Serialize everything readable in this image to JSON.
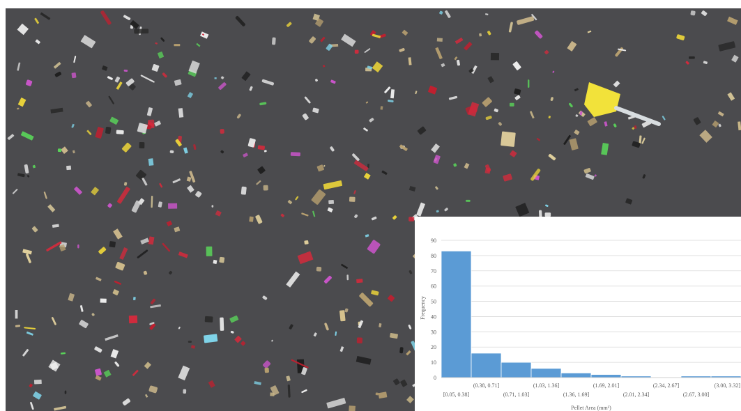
{
  "photo": {
    "description_icon": "plastic-pellets-photo",
    "background_color": "#4a4a4d"
  },
  "chart_data": {
    "type": "bar",
    "title": "",
    "xlabel": "Pellet Area (mm²)",
    "ylabel": "Frequency",
    "ylim": [
      0,
      90
    ],
    "yticks": [
      0,
      10,
      20,
      30,
      40,
      50,
      60,
      70,
      80,
      90
    ],
    "grid": true,
    "legend": "none",
    "bar_color": "#5b9bd5",
    "categories": [
      "[0.05, 0.38]",
      "(0.38, 0.71]",
      "(0.71, 1.03]",
      "(1.03, 1.36]",
      "(1.36, 1.69]",
      "(1.69, 2.01]",
      "(2.01, 2.34]",
      "(2.34, 2.67]",
      "(2.67, 3.00]",
      "(3.00, 3.32]"
    ],
    "values": [
      83,
      16,
      10,
      6,
      3,
      2,
      1,
      0,
      1,
      1
    ]
  }
}
